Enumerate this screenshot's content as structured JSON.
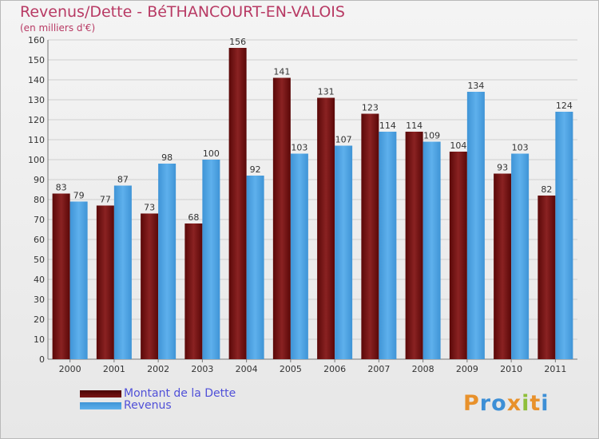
{
  "title": "Revenus/Dette - BéTHANCOURT-EN-VALOIS",
  "subtitle": "(en milliers d'€)",
  "colors": {
    "dette": "#7a1414",
    "revenus": "#4c9fe0",
    "title": "#b83a64",
    "legend_text": "#5050d8"
  },
  "chart_data": {
    "type": "bar",
    "title": "Revenus/Dette - BéTHANCOURT-EN-VALOIS",
    "ylabel": "(en milliers d'€)",
    "xlabel": "",
    "categories": [
      "2000",
      "2001",
      "2002",
      "2003",
      "2004",
      "2005",
      "2006",
      "2007",
      "2008",
      "2009",
      "2010",
      "2011"
    ],
    "series": [
      {
        "name": "Montant de la Dette",
        "values": [
          83,
          77,
          73,
          68,
          156,
          141,
          131,
          123,
          114,
          104,
          93,
          82
        ]
      },
      {
        "name": "Revenus",
        "values": [
          79,
          87,
          98,
          100,
          92,
          103,
          107,
          114,
          109,
          134,
          103,
          124
        ]
      }
    ],
    "ylim": [
      0,
      160
    ],
    "yticks": [
      0,
      10,
      20,
      30,
      40,
      50,
      60,
      70,
      80,
      90,
      100,
      110,
      120,
      130,
      140,
      150,
      160
    ],
    "grid": true,
    "legend": "bottom-left"
  },
  "legend": {
    "dette_label": "Montant de la Dette",
    "revenus_label": "Revenus"
  },
  "logo": {
    "letters": [
      "P",
      "r",
      "o",
      "x",
      "i",
      "t",
      "i"
    ]
  }
}
